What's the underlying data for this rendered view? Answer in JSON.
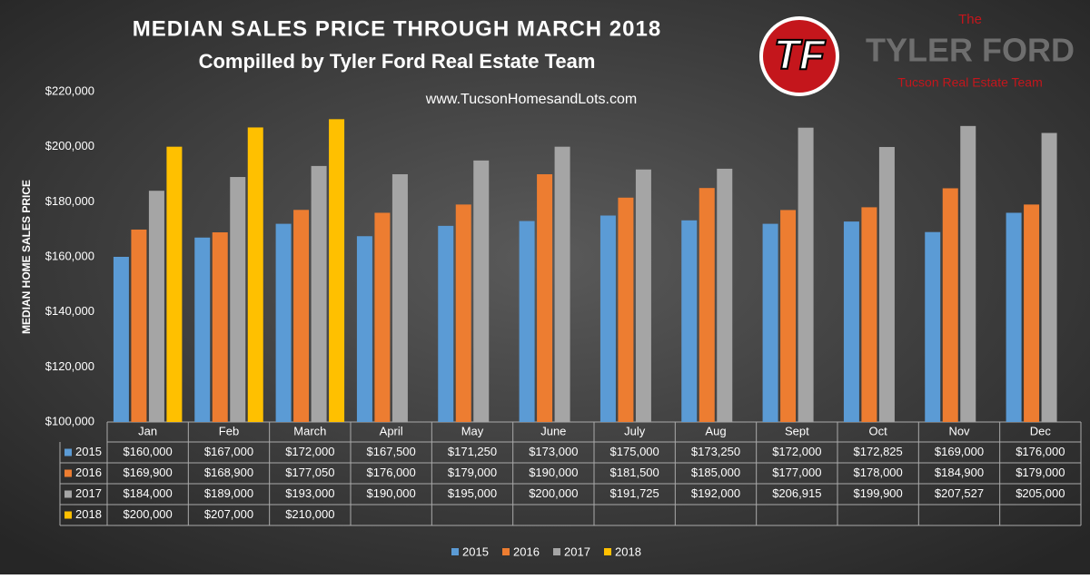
{
  "chart_data": {
    "type": "bar",
    "title": "MEDIAN SALES PRICE THROUGH MARCH 2018",
    "subtitle": "Compilled by Tyler Ford Real Estate Team",
    "website": "www.TucsonHomesandLots.com",
    "y_label": "MEDIAN HOME SALES PRICE",
    "logo": {
      "initials": "TF",
      "the": "The",
      "name": "TYLER FORD",
      "tagline": "Tucson Real Estate Team"
    },
    "categories": [
      "Jan",
      "Feb",
      "March",
      "April",
      "May",
      "June",
      "July",
      "Aug",
      "Sept",
      "Oct",
      "Nov",
      "Dec"
    ],
    "series": [
      {
        "name": "2015",
        "color": "#5b9bd5",
        "values": [
          160000,
          167000,
          172000,
          167500,
          171250,
          173000,
          175000,
          173250,
          172000,
          172825,
          169000,
          176000
        ],
        "value_labels": [
          "$160,000",
          "$167,000",
          "$172,000",
          "$167,500",
          "$171,250",
          "$173,000",
          "$175,000",
          "$173,250",
          "$172,000",
          "$172,825",
          "$169,000",
          "$176,000"
        ]
      },
      {
        "name": "2016",
        "color": "#ed7d31",
        "values": [
          169900,
          168900,
          177050,
          176000,
          179000,
          190000,
          181500,
          185000,
          177000,
          178000,
          184900,
          179000
        ],
        "value_labels": [
          "$169,900",
          "$168,900",
          "$177,050",
          "$176,000",
          "$179,000",
          "$190,000",
          "$181,500",
          "$185,000",
          "$177,000",
          "$178,000",
          "$184,900",
          "$179,000"
        ]
      },
      {
        "name": "2017",
        "color": "#a5a5a5",
        "values": [
          184000,
          189000,
          193000,
          190000,
          195000,
          200000,
          191725,
          192000,
          206915,
          199900,
          207527,
          205000
        ],
        "value_labels": [
          "$184,000",
          "$189,000",
          "$193,000",
          "$190,000",
          "$195,000",
          "$200,000",
          "$191,725",
          "$192,000",
          "$206,915",
          "$199,900",
          "$207,527",
          "$205,000"
        ]
      },
      {
        "name": "2018",
        "color": "#ffc000",
        "values": [
          200000,
          207000,
          210000,
          null,
          null,
          null,
          null,
          null,
          null,
          null,
          null,
          null
        ],
        "value_labels": [
          "$200,000",
          "$207,000",
          "$210,000",
          null,
          null,
          null,
          null,
          null,
          null,
          null,
          null,
          null
        ]
      }
    ],
    "ylim": [
      100000,
      220000
    ],
    "yticks": [
      {
        "value": 100000,
        "label": "$100,000"
      },
      {
        "value": 120000,
        "label": "$120,000"
      },
      {
        "value": 140000,
        "label": "$140,000"
      },
      {
        "value": 160000,
        "label": "$160,000"
      },
      {
        "value": 180000,
        "label": "$180,000"
      },
      {
        "value": 200000,
        "label": "$200,000"
      },
      {
        "value": 220000,
        "label": "$220,000"
      }
    ],
    "grid": false,
    "legend": "bottom"
  }
}
